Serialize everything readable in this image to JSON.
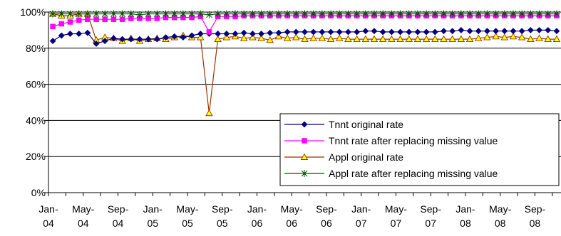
{
  "chart_data": {
    "type": "line",
    "title": "",
    "xlabel": "",
    "ylabel": "",
    "ylim": [
      0,
      100
    ],
    "y_ticks": [
      "0%",
      "20%",
      "40%",
      "60%",
      "80%",
      "100%"
    ],
    "grid": "horizontal",
    "legend_position": "lower-right",
    "x": [
      "Jan-04",
      "Feb-04",
      "Mar-04",
      "Apr-04",
      "May-04",
      "Jun-04",
      "Jul-04",
      "Aug-04",
      "Sep-04",
      "Oct-04",
      "Nov-04",
      "Dec-04",
      "Jan-05",
      "Feb-05",
      "Mar-05",
      "Apr-05",
      "May-05",
      "Jun-05",
      "Jul-05",
      "Aug-05",
      "Sep-05",
      "Oct-05",
      "Nov-05",
      "Dec-05",
      "Jan-06",
      "Feb-06",
      "Mar-06",
      "Apr-06",
      "May-06",
      "Jun-06",
      "Jul-06",
      "Aug-06",
      "Sep-06",
      "Oct-06",
      "Nov-06",
      "Dec-06",
      "Jan-07",
      "Feb-07",
      "Mar-07",
      "Apr-07",
      "May-07",
      "Jun-07",
      "Jul-07",
      "Aug-07",
      "Sep-07",
      "Oct-07",
      "Nov-07",
      "Dec-07",
      "Jan-08",
      "Feb-08",
      "Mar-08",
      "Apr-08",
      "May-08",
      "Jun-08",
      "Jul-08",
      "Aug-08",
      "Sep-08",
      "Oct-08",
      "Nov-08"
    ],
    "x_tick_labels": [
      {
        "line1": "Jan-",
        "line2": "04",
        "index": 0
      },
      {
        "line1": "May-",
        "line2": "04",
        "index": 4
      },
      {
        "line1": "Sep-",
        "line2": "04",
        "index": 8
      },
      {
        "line1": "Jan-",
        "line2": "05",
        "index": 12
      },
      {
        "line1": "May-",
        "line2": "05",
        "index": 16
      },
      {
        "line1": "Sep-",
        "line2": "05",
        "index": 20
      },
      {
        "line1": "Jan-",
        "line2": "06",
        "index": 24
      },
      {
        "line1": "May-",
        "line2": "06",
        "index": 28
      },
      {
        "line1": "Sep-",
        "line2": "06",
        "index": 32
      },
      {
        "line1": "Jan-",
        "line2": "07",
        "index": 36
      },
      {
        "line1": "May-",
        "line2": "07",
        "index": 40
      },
      {
        "line1": "Sep-",
        "line2": "07",
        "index": 44
      },
      {
        "line1": "Jan-",
        "line2": "08",
        "index": 48
      },
      {
        "line1": "May-",
        "line2": "08",
        "index": 52
      },
      {
        "line1": "Sep-",
        "line2": "08",
        "index": 56
      }
    ],
    "series": [
      {
        "name": "Tnnt original rate",
        "color": "#000080",
        "marker": "diamond",
        "values": [
          84,
          87,
          88,
          88,
          88.5,
          82.5,
          84,
          85.5,
          85,
          85,
          85,
          85,
          85,
          86,
          86.5,
          86,
          87,
          88,
          88,
          88,
          88,
          88,
          88.5,
          88,
          88,
          88.5,
          88.5,
          89,
          89,
          89,
          89,
          89,
          89,
          89,
          89,
          89,
          89.5,
          89.5,
          89,
          89,
          89,
          89,
          89,
          89,
          89,
          89.5,
          89.5,
          90,
          89.5,
          89.5,
          89.5,
          89.5,
          89.5,
          89.5,
          89.5,
          90,
          90,
          90,
          89.5
        ]
      },
      {
        "name": "Tnnt rate after replacing missing value",
        "color": "#FF00FF",
        "marker": "square",
        "values": [
          92,
          93.5,
          94.5,
          95.5,
          96,
          96,
          96,
          96,
          96,
          96.5,
          96.5,
          96.5,
          96.5,
          97,
          97,
          97,
          97,
          97.5,
          89,
          97.5,
          97.5,
          97.5,
          98,
          98,
          98,
          98,
          98,
          98,
          98,
          98,
          98,
          98,
          98,
          98,
          98,
          98,
          98,
          98,
          98,
          98,
          98,
          98,
          98,
          98,
          98,
          98,
          98,
          98,
          98,
          98,
          98,
          98,
          98,
          98,
          98,
          98,
          98,
          98,
          98
        ]
      },
      {
        "name": "Appl original  rate",
        "color": "#993300",
        "marker": "triangle",
        "marker_fill": "#FFFF00",
        "values": [
          99,
          98,
          98,
          99,
          99,
          84.5,
          86,
          85.5,
          84,
          85.5,
          84,
          85,
          85.5,
          85,
          86,
          87,
          86,
          86,
          44,
          85,
          86,
          86.5,
          85.5,
          86,
          85.5,
          84.5,
          86.5,
          85.5,
          86,
          85,
          85.5,
          85.5,
          85,
          85.5,
          85,
          85,
          85,
          85,
          85,
          85,
          85,
          85,
          85,
          85,
          85,
          85,
          85,
          85,
          85,
          85.5,
          86,
          86.5,
          86,
          86.5,
          86,
          85,
          85.5,
          85,
          85
        ]
      },
      {
        "name": "Appl rate after replacing missing value",
        "color": "#005500",
        "marker": "asterisk",
        "values": [
          99,
          99,
          99,
          99,
          99,
          99,
          99,
          99,
          99,
          99,
          98.5,
          99,
          99,
          99,
          99,
          99,
          99,
          99,
          98.5,
          99,
          99,
          99,
          99,
          99,
          99,
          99,
          99,
          99,
          99,
          99,
          99,
          99,
          99,
          99,
          99,
          99,
          99,
          99,
          99,
          99,
          99,
          99,
          99,
          99,
          99,
          99,
          99,
          99,
          99,
          99,
          99,
          99,
          99,
          99,
          99,
          99,
          99,
          99,
          99
        ]
      }
    ]
  }
}
